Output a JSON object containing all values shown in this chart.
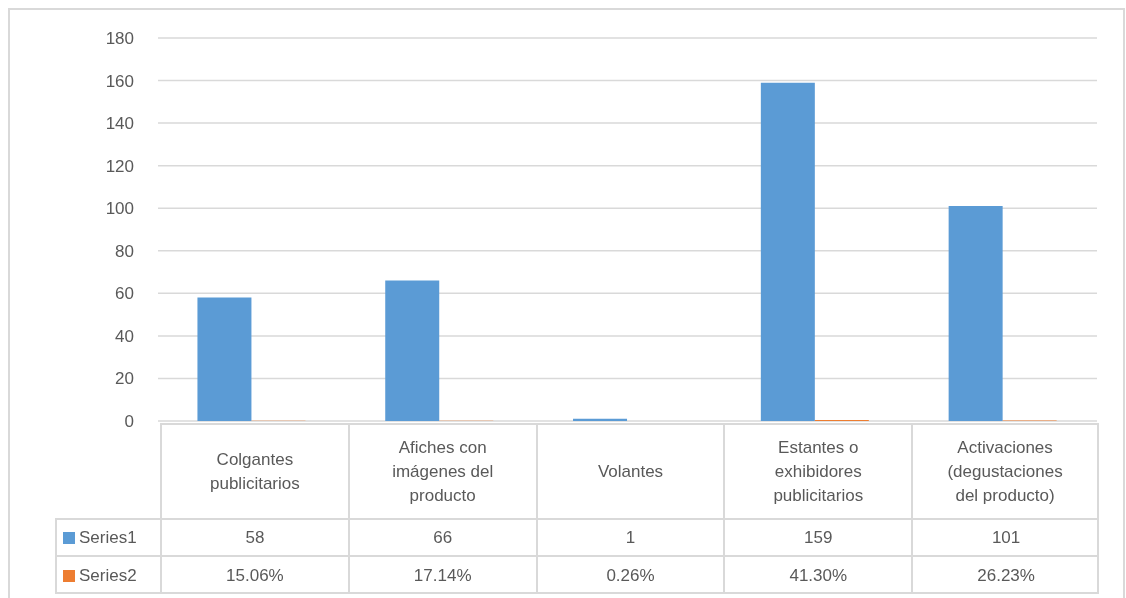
{
  "chart_data": {
    "type": "bar",
    "categories": [
      "Colgantes publicitarios",
      "Afiches con imágenes del producto",
      "Volantes",
      "Estantes o exhibidores publicitarios",
      "Activaciones (degustaciones del producto)"
    ],
    "series": [
      {
        "name": "Series1",
        "color": "#5b9bd5",
        "values": [
          58,
          66,
          1,
          159,
          101
        ],
        "value_labels": [
          "58",
          "66",
          "1",
          "159",
          "101"
        ]
      },
      {
        "name": "Series2",
        "color": "#ed7d31",
        "values": [
          0.1506,
          0.1714,
          0.0026,
          0.413,
          0.2623
        ],
        "value_labels": [
          "15.06%",
          "17.14%",
          "0.26%",
          "41.30%",
          "26.23%"
        ]
      }
    ],
    "ylim": [
      0,
      180
    ],
    "yticks": [
      0,
      20,
      40,
      60,
      80,
      100,
      120,
      140,
      160,
      180
    ],
    "grid": "y",
    "legend": "bottom left"
  }
}
